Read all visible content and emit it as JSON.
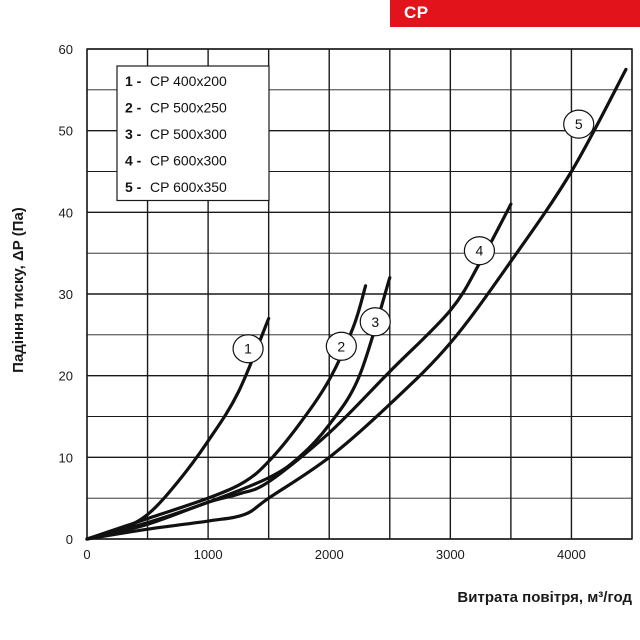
{
  "header": {
    "label": "CP",
    "color": "#e3131b"
  },
  "chart_data": {
    "type": "line",
    "xlabel": "Витрата повітря, м³/год",
    "ylabel": "Падіння тиску, ΔP (Па)",
    "xlim": [
      0,
      4500
    ],
    "ylim": [
      0,
      60
    ],
    "xticks": [
      0,
      1000,
      2000,
      3000,
      4000
    ],
    "yticks": [
      0,
      10,
      20,
      30,
      40,
      50,
      60
    ],
    "xtick_labels": [
      "0",
      "1000",
      "2000",
      "3000",
      "4000"
    ],
    "ytick_labels": [
      "0",
      "10",
      "20",
      "30",
      "40",
      "50",
      "60"
    ],
    "grid": true,
    "legend_position": "top-left",
    "line_color": "#111111",
    "series": [
      {
        "name": "CP 400x200",
        "label": "1",
        "x": [
          0,
          250,
          500,
          750,
          1000,
          1250,
          1500
        ],
        "y": [
          0,
          1.0,
          3.0,
          7.0,
          12.0,
          18.0,
          27.0
        ]
      },
      {
        "name": "CP 500x250",
        "label": "2",
        "x": [
          0,
          500,
          1000,
          1300,
          1500,
          1750,
          2000,
          2200,
          2300
        ],
        "y": [
          0,
          2.5,
          5.0,
          7.0,
          9.5,
          14.0,
          19.5,
          26.0,
          31.0
        ]
      },
      {
        "name": "CP 500x300",
        "label": "3",
        "x": [
          0,
          500,
          1000,
          1500,
          1750,
          2000,
          2250,
          2500
        ],
        "y": [
          0,
          2.0,
          4.5,
          7.5,
          10.0,
          14.0,
          20.0,
          32.0
        ]
      },
      {
        "name": "CP 600x300",
        "label": "4",
        "x": [
          0,
          500,
          1000,
          1250,
          1500,
          2000,
          2500,
          3000,
          3250,
          3500
        ],
        "y": [
          0,
          1.8,
          4.5,
          5.5,
          7.0,
          13.0,
          20.5,
          28.0,
          34.0,
          41.0
        ]
      },
      {
        "name": "CP 600x350",
        "label": "5",
        "x": [
          0,
          500,
          1000,
          1300,
          1500,
          2000,
          2500,
          3000,
          3500,
          4000,
          4450
        ],
        "y": [
          0,
          1.2,
          2.2,
          3.0,
          5.0,
          10.0,
          16.5,
          24.0,
          34.0,
          45.0,
          57.5
        ]
      }
    ],
    "curve_labels": [
      {
        "text": "1",
        "x": 1330,
        "y": 23.3
      },
      {
        "text": "2",
        "x": 2100,
        "y": 23.6
      },
      {
        "text": "3",
        "x": 2380,
        "y": 26.6
      },
      {
        "text": "4",
        "x": 3240,
        "y": 35.3
      },
      {
        "text": "5",
        "x": 4060,
        "y": 50.8
      }
    ]
  },
  "legend": {
    "entries": [
      {
        "num": "1 -",
        "text": "CP  400x200"
      },
      {
        "num": "2 -",
        "text": "CP  500x250"
      },
      {
        "num": "3 -",
        "text": "CP  500x300"
      },
      {
        "num": "4 -",
        "text": "CP  600x300"
      },
      {
        "num": "5 -",
        "text": "CP  600x350"
      }
    ]
  }
}
